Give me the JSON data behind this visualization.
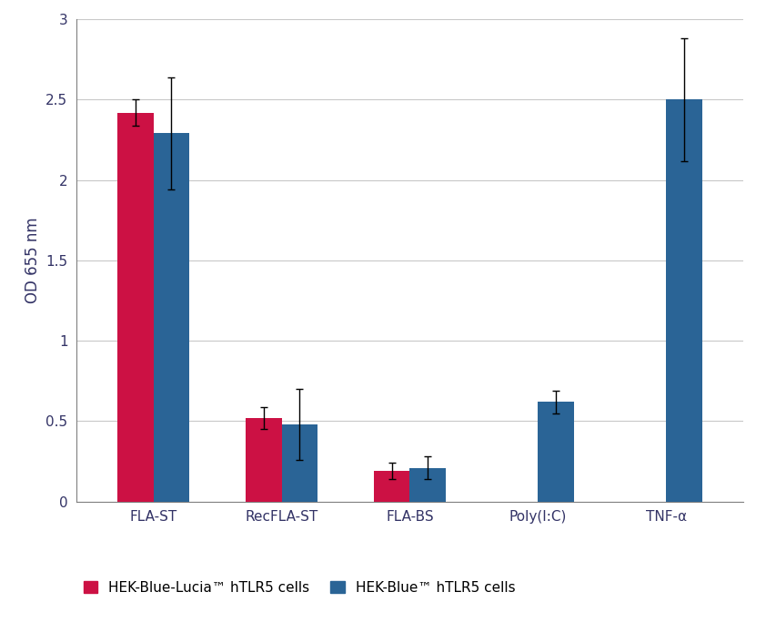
{
  "categories": [
    "FLA-ST",
    "RecFLA-ST",
    "FLA-BS",
    "Poly(I:C)",
    "TNF-α"
  ],
  "red_values": [
    2.42,
    0.52,
    0.19,
    null,
    null
  ],
  "blue_values": [
    2.29,
    0.48,
    0.21,
    0.62,
    2.5
  ],
  "red_errors": [
    0.08,
    0.07,
    0.05,
    null,
    null
  ],
  "blue_errors": [
    0.35,
    0.22,
    0.07,
    0.07,
    0.38
  ],
  "red_color": "#cc1144",
  "blue_color": "#2a6496",
  "ylabel": "OD 655 nm",
  "ylim": [
    0,
    3
  ],
  "yticks": [
    0,
    0.5,
    1,
    1.5,
    2,
    2.5,
    3
  ],
  "ytick_labels": [
    "0",
    "0.5",
    "1",
    "1.5",
    "2",
    "2.5",
    "3"
  ],
  "legend_red": "HEK-Blue-Lucia™ hTLR5 cells",
  "legend_blue": "HEK-Blue™ hTLR5 cells",
  "bar_width": 0.28,
  "background_color": "#ffffff",
  "grid_color": "#c8c8c8",
  "tick_fontsize": 11,
  "label_fontsize": 12,
  "spine_color": "#808080"
}
